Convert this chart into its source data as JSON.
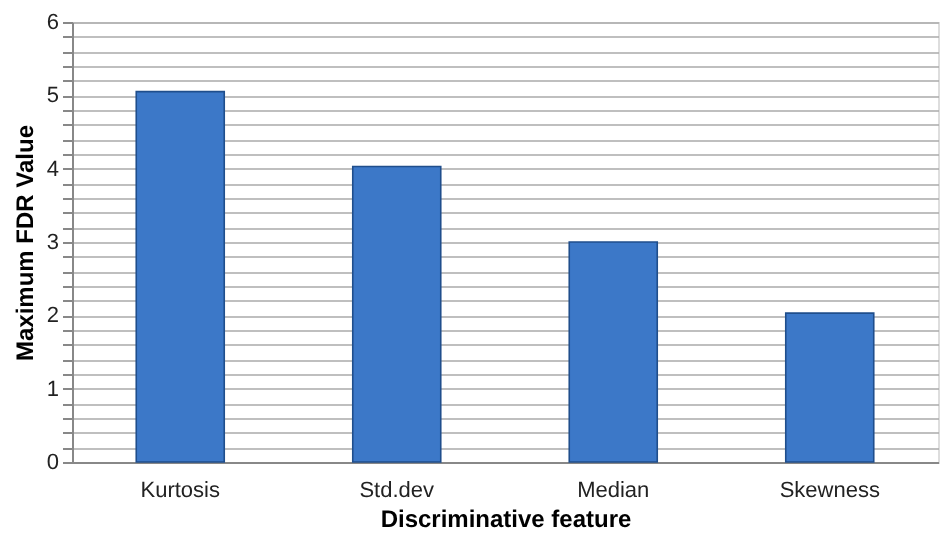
{
  "chart_data": {
    "type": "bar",
    "xlabel": "Discriminative feature",
    "ylabel": "Maximum FDR Value",
    "categories": [
      "Kurtosis",
      "Std.dev",
      "Median",
      "Skewness"
    ],
    "values": [
      5.05,
      4.03,
      3.0,
      2.03
    ],
    "color": "#3c78c8",
    "ylim": [
      0,
      6
    ],
    "yticks": [
      0,
      {
        "value": 0.2,
        "label": null
      },
      {
        "value": 0.4,
        "label": null
      },
      {
        "value": 0.6,
        "label": null
      },
      {
        "value": 0.8,
        "label": null
      },
      1,
      {
        "value": 1.2,
        "label": null
      },
      {
        "value": 1.4,
        "label": null
      },
      {
        "value": 1.6,
        "label": null
      },
      {
        "value": 1.8,
        "label": null
      },
      2,
      {
        "value": 2.2,
        "label": null
      },
      {
        "value": 2.4,
        "label": null
      },
      {
        "value": 2.6,
        "label": null
      },
      {
        "value": 2.8,
        "label": null
      },
      3,
      {
        "value": 3.2,
        "label": null
      },
      {
        "value": 3.4,
        "label": null
      },
      {
        "value": 3.6,
        "label": null
      },
      {
        "value": 3.8,
        "label": null
      },
      4,
      {
        "value": 4.2,
        "label": null
      },
      {
        "value": 4.4,
        "label": null
      },
      {
        "value": 4.6,
        "label": null
      },
      {
        "value": 4.8,
        "label": null
      },
      5,
      {
        "value": 5.2,
        "label": null
      },
      {
        "value": 5.4,
        "label": null
      },
      {
        "value": 5.6,
        "label": null
      },
      {
        "value": 5.8,
        "label": null
      },
      6
    ],
    "grid": "y"
  }
}
